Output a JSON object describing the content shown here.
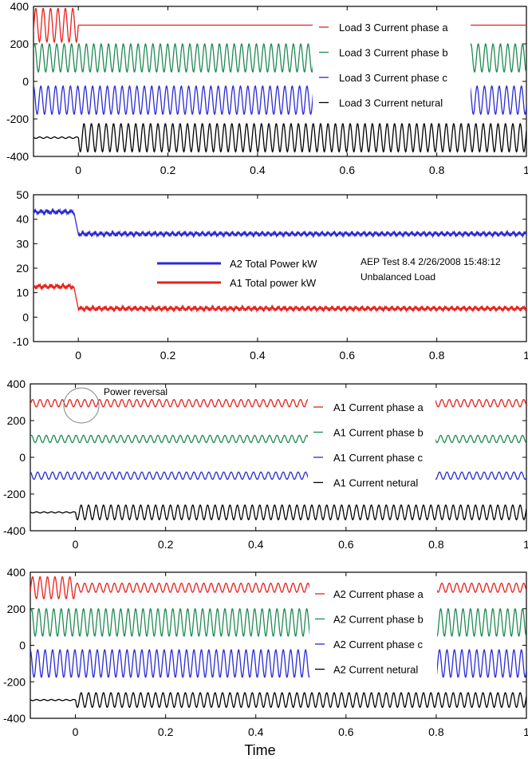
{
  "chart_data": [
    {
      "type": "line",
      "xlim": [
        -0.1,
        1
      ],
      "ylim": [
        -400,
        400
      ],
      "x_ticks": [
        "0",
        "0.2",
        "0.4",
        "0.6",
        "0.8",
        "1"
      ],
      "y_ticks": [
        "400",
        "200",
        "0",
        "-200",
        "-400"
      ],
      "legend_placement": "center-right, inside plot",
      "series": [
        {
          "name": "Load 3 Current phase a",
          "color": "#e8211c",
          "before_step": {
            "center": 300,
            "amplitude": 90
          },
          "after_step": {
            "center": 300,
            "amplitude": 0
          }
        },
        {
          "name": "Load 3 Current phase b",
          "color": "#1f8a52",
          "before_step": {
            "center": 125,
            "amplitude": 75
          },
          "after_step": {
            "center": 125,
            "amplitude": 75
          }
        },
        {
          "name": "Load 3 Current phase c",
          "color": "#2a2ad6",
          "before_step": {
            "center": -100,
            "amplitude": 75
          },
          "after_step": {
            "center": -100,
            "amplitude": 75
          }
        },
        {
          "name": "Load 3 Current netural",
          "color": "#000000",
          "before_step": {
            "center": -300,
            "amplitude": 4
          },
          "after_step": {
            "center": -300,
            "amplitude": 75
          }
        }
      ],
      "step_time": 0.0
    },
    {
      "type": "line",
      "xlim": [
        -0.1,
        1
      ],
      "ylim": [
        -10,
        50
      ],
      "x_ticks": [
        "0",
        "0.2",
        "0.4",
        "0.6",
        "0.8",
        "1"
      ],
      "y_ticks": [
        "50",
        "40",
        "30",
        "20",
        "10",
        "0",
        "-10"
      ],
      "legend_placement": "center",
      "series": [
        {
          "name": "A2 Total Power kW",
          "color": "#2a2ad6",
          "before_step": 43,
          "after_step": 34
        },
        {
          "name": "A1 Total power kW",
          "color": "#e8211c",
          "before_step": 12.5,
          "after_step": 3.5
        }
      ],
      "step_time": -0.01,
      "annotations": [
        "AEP Test 8.4  2/26/2008  15:48:12",
        "Unbalanced Load"
      ]
    },
    {
      "type": "line",
      "xlim": [
        -0.1,
        1
      ],
      "ylim": [
        -400,
        400
      ],
      "x_ticks": [
        "0",
        "0.2",
        "0.4",
        "0.6",
        "0.8",
        "1"
      ],
      "y_ticks": [
        "400",
        "200",
        "0",
        "-200",
        "-400"
      ],
      "legend_placement": "center-right, inside plot",
      "series": [
        {
          "name": "A1 Current phase a",
          "color": "#e8211c",
          "before_step": {
            "center": 295,
            "amplitude": 20
          },
          "after_step": {
            "center": 295,
            "amplitude": 20
          }
        },
        {
          "name": "A1 Current phase b",
          "color": "#1f8a52",
          "before_step": {
            "center": 100,
            "amplitude": 20
          },
          "after_step": {
            "center": 100,
            "amplitude": 20
          }
        },
        {
          "name": "A1 Current phase c",
          "color": "#2a2ad6",
          "before_step": {
            "center": -100,
            "amplitude": 20
          },
          "after_step": {
            "center": -100,
            "amplitude": 20
          }
        },
        {
          "name": "A1 Current netural",
          "color": "#000000",
          "before_step": {
            "center": -300,
            "amplitude": 3
          },
          "after_step": {
            "center": -300,
            "amplitude": 40
          }
        }
      ],
      "step_time": 0.0,
      "annotations": [
        "Power reversal"
      ]
    },
    {
      "type": "line",
      "xlim": [
        -0.1,
        1
      ],
      "ylim": [
        -400,
        400
      ],
      "x_ticks": [
        "0",
        "0.2",
        "0.4",
        "0.6",
        "0.8",
        "1"
      ],
      "y_ticks": [
        "400",
        "200",
        "0",
        "-200",
        "-400"
      ],
      "xlabel": "Time",
      "legend_placement": "center-right, inside plot",
      "series": [
        {
          "name": "A2 Current phase a",
          "color": "#e8211c",
          "before_step": {
            "center": 315,
            "amplitude": 60
          },
          "after_step": {
            "center": 315,
            "amplitude": 25
          }
        },
        {
          "name": "A2 Current phase b",
          "color": "#1f8a52",
          "before_step": {
            "center": 125,
            "amplitude": 75
          },
          "after_step": {
            "center": 125,
            "amplitude": 75
          }
        },
        {
          "name": "A2 Current phase c",
          "color": "#2a2ad6",
          "before_step": {
            "center": -100,
            "amplitude": 75
          },
          "after_step": {
            "center": -100,
            "amplitude": 75
          }
        },
        {
          "name": "A2 Current netural",
          "color": "#000000",
          "before_step": {
            "center": -300,
            "amplitude": 3
          },
          "after_step": {
            "center": -300,
            "amplitude": 40
          }
        }
      ],
      "step_time": 0.0
    }
  ]
}
